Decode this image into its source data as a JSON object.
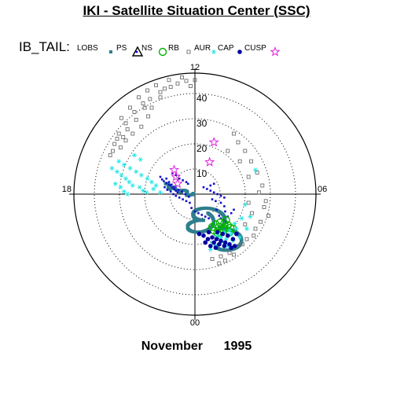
{
  "title": "IKI - Satellite Situation Center (SSC)",
  "legend_prefix": "IB_TAIL:",
  "footer": {
    "month": "November",
    "year": "1995"
  },
  "colors": {
    "lobs": "#2e7f8f",
    "ps": "#1010c8",
    "ns": "#000000",
    "rb": "#00b400",
    "aur": "#707070",
    "cap": "#20e6e6",
    "cusp": "#0000a0",
    "cusp_star": "#e020e0"
  },
  "chart_data": {
    "type": "scatter",
    "coordinate_system": "polar (magnetic local time vs radius)",
    "rmax": 45,
    "radial_ticks": [
      10,
      20,
      30,
      40
    ],
    "angular_labels": {
      "top": "12",
      "bottom": "00",
      "left": "18",
      "right": "06"
    },
    "grid": true,
    "legend": {
      "placement": "top-left",
      "entries": [
        "LOBS",
        "PS",
        "NS",
        "RB",
        "AUR",
        "CAP",
        "CUSP",
        "CUSP"
      ]
    },
    "series": [
      {
        "name": "LOBS",
        "marker": "square-filled",
        "color": "#2e7f8f",
        "trajectory": [
          [
            12,
            11
          ],
          [
            10,
            20
          ],
          [
            8,
            17
          ],
          [
            7,
            24
          ],
          [
            5,
            20
          ],
          [
            3.5,
            18
          ],
          [
            2,
            20
          ],
          [
            1,
            19
          ],
          [
            0,
            14
          ],
          [
            0,
            9
          ],
          [
            0.5,
            10
          ],
          [
            1,
            12
          ]
        ],
        "points": []
      },
      {
        "name": "PS",
        "marker": "dot",
        "color": "#1010c8",
        "points": [
          [
            -40,
            20
          ],
          [
            -38,
            17
          ],
          [
            -36,
            15
          ],
          [
            -33,
            13
          ],
          [
            -30,
            11
          ],
          [
            -28,
            10
          ],
          [
            -26,
            8
          ],
          [
            -24,
            6
          ],
          [
            -22,
            4
          ],
          [
            -20,
            2
          ],
          [
            -35,
            8
          ],
          [
            -32,
            5
          ],
          [
            -28,
            3
          ],
          [
            -25,
            0
          ],
          [
            -22,
            -2
          ],
          [
            -18,
            -4
          ],
          [
            -14,
            -6
          ],
          [
            -10,
            -8
          ],
          [
            -6,
            -10
          ],
          [
            -30,
            14
          ],
          [
            -27,
            11
          ],
          [
            -23,
            8
          ],
          [
            -19,
            5
          ],
          [
            -15,
            3
          ],
          [
            -11,
            0
          ],
          [
            -7,
            -3
          ],
          [
            -33,
            18
          ],
          [
            10,
            8
          ],
          [
            14,
            6
          ],
          [
            18,
            4
          ],
          [
            22,
            2
          ],
          [
            26,
            0
          ],
          [
            30,
            -2
          ],
          [
            34,
            -4
          ],
          [
            18,
            10
          ],
          [
            22,
            12
          ],
          [
            20,
            -6
          ],
          [
            24,
            -8
          ],
          [
            30,
            -10
          ],
          [
            34,
            -14
          ],
          [
            25,
            -18
          ],
          [
            35,
            -20
          ],
          [
            28,
            -25
          ],
          [
            30,
            -28
          ],
          [
            33,
            -30
          ],
          [
            36,
            -32
          ],
          [
            38,
            -26
          ],
          [
            42,
            -22
          ],
          [
            45,
            -18
          ],
          [
            -14,
            16
          ],
          [
            -10,
            14
          ],
          [
            -18,
            18
          ],
          [
            -22,
            22
          ],
          [
            -26,
            24
          ],
          [
            -8,
            12
          ],
          [
            -4,
            -16
          ],
          [
            0,
            -20
          ],
          [
            4,
            -22
          ],
          [
            8,
            -24
          ],
          [
            12,
            -26
          ],
          [
            16,
            -28
          ]
        ]
      },
      {
        "name": "NS",
        "marker": "triangle",
        "color": "#000000",
        "points": []
      },
      {
        "name": "RB",
        "marker": "circle",
        "color": "#00b400",
        "points": [
          [
            24,
            -35
          ],
          [
            28,
            -38
          ],
          [
            32,
            -41
          ],
          [
            38,
            -36
          ],
          [
            35,
            -40
          ],
          [
            30,
            -44
          ],
          [
            41,
            -39
          ],
          [
            22,
            -42
          ],
          [
            26,
            -45
          ],
          [
            34,
            -34
          ],
          [
            44,
            -40
          ],
          [
            20,
            -38
          ],
          [
            36,
            -30
          ],
          [
            29,
            -33
          ],
          [
            40,
            -44
          ]
        ]
      },
      {
        "name": "AUR",
        "marker": "square-open",
        "color": "#707070",
        "points": [
          [
            -60,
            105
          ],
          [
            -70,
            95
          ],
          [
            -80,
            82
          ],
          [
            -88,
            70
          ],
          [
            -93,
            58
          ],
          [
            -98,
            45
          ],
          [
            -52,
            110
          ],
          [
            -40,
            118
          ],
          [
            -28,
            124
          ],
          [
            -20,
            128
          ],
          [
            -10,
            131
          ],
          [
            -75,
            100
          ],
          [
            -85,
            88
          ],
          [
            -65,
            112
          ],
          [
            -55,
            120
          ],
          [
            -45,
            126
          ],
          [
            -30,
            132
          ],
          [
            -15,
            135
          ],
          [
            -62,
            78
          ],
          [
            -72,
            70
          ],
          [
            -80,
            62
          ],
          [
            -86,
            54
          ],
          [
            -54,
            90
          ],
          [
            -58,
            100
          ],
          [
            0,
            132
          ],
          [
            -78,
            75
          ],
          [
            -68,
            86
          ],
          [
            -50,
            100
          ],
          [
            -40,
            112
          ],
          [
            -35,
            122
          ],
          [
            -5,
            125
          ],
          [
            -90,
            64
          ],
          [
            -95,
            50
          ],
          [
            -83,
            66
          ],
          [
            45,
            70
          ],
          [
            50,
            60
          ],
          [
            58,
            50
          ],
          [
            65,
            38
          ],
          [
            72,
            25
          ],
          [
            78,
            10
          ],
          [
            82,
            -8
          ],
          [
            85,
            -25
          ],
          [
            70,
            -40
          ],
          [
            60,
            -52
          ],
          [
            50,
            -60
          ],
          [
            40,
            -68
          ],
          [
            30,
            -72
          ],
          [
            20,
            -75
          ],
          [
            76,
            -32
          ],
          [
            68,
            -48
          ],
          [
            55,
            -58
          ],
          [
            80,
            -15
          ],
          [
            74,
            2
          ],
          [
            62,
            -10
          ],
          [
            66,
            -22
          ],
          [
            58,
            -35
          ],
          [
            62,
            20
          ],
          [
            52,
            38
          ],
          [
            38,
            50
          ],
          [
            45,
            -70
          ],
          [
            35,
            -77
          ],
          [
            28,
            -80
          ]
        ]
      },
      {
        "name": "CAP",
        "marker": "asterisk",
        "color": "#20e6e6",
        "points": [
          [
            -96,
            30
          ],
          [
            -90,
            26
          ],
          [
            -85,
            22
          ],
          [
            -80,
            18
          ],
          [
            -76,
            14
          ],
          [
            -72,
            10
          ],
          [
            -64,
            8
          ],
          [
            -60,
            4
          ],
          [
            -56,
            2
          ],
          [
            -92,
            12
          ],
          [
            -86,
            8
          ],
          [
            -82,
            3
          ],
          [
            -78,
            0
          ],
          [
            -88,
            38
          ],
          [
            -82,
            34
          ],
          [
            -75,
            30
          ],
          [
            -68,
            26
          ],
          [
            -62,
            22
          ],
          [
            -55,
            18
          ],
          [
            -50,
            14
          ],
          [
            -45,
            10
          ],
          [
            -70,
            45
          ],
          [
            -63,
            40
          ],
          [
            -48,
            6
          ],
          [
            -40,
            2
          ],
          [
            70,
            28
          ],
          [
            58,
            -12
          ],
          [
            64,
            -26
          ],
          [
            48,
            -40
          ],
          [
            42,
            -46
          ],
          [
            36,
            -52
          ],
          [
            30,
            -56
          ],
          [
            24,
            -60
          ],
          [
            18,
            -64
          ],
          [
            54,
            -28
          ],
          [
            60,
            -40
          ],
          [
            52,
            -50
          ],
          [
            38,
            -60
          ],
          [
            44,
            -54
          ],
          [
            26,
            -48
          ],
          [
            30,
            -50
          ],
          [
            34,
            -44
          ],
          [
            40,
            -42
          ],
          [
            20,
            -56
          ],
          [
            46,
            -34
          ]
        ]
      },
      {
        "name": "CUSP",
        "marker": "dot-large",
        "color": "#0000a0",
        "points": [
          [
            20,
            -50
          ],
          [
            25,
            -52
          ],
          [
            30,
            -54
          ],
          [
            35,
            -56
          ],
          [
            22,
            -56
          ],
          [
            28,
            -58
          ],
          [
            34,
            -60
          ],
          [
            15,
            -52
          ],
          [
            10,
            -48
          ],
          [
            12,
            -56
          ],
          [
            18,
            -60
          ],
          [
            24,
            -62
          ],
          [
            40,
            -58
          ],
          [
            44,
            -52
          ],
          [
            38,
            -48
          ],
          [
            32,
            -46
          ],
          [
            26,
            -44
          ],
          [
            46,
            -60
          ],
          [
            5,
            -46
          ],
          [
            16,
            -44
          ],
          [
            48,
            -46
          ],
          [
            42,
            -62
          ]
        ]
      },
      {
        "name": "CUSP",
        "marker": "star-open",
        "color": "#e020e0",
        "points": [
          [
            22,
            60
          ],
          [
            17,
            37
          ],
          [
            -24,
            28
          ],
          [
            -22,
            20
          ],
          [
            -20,
            12
          ]
        ]
      }
    ]
  }
}
